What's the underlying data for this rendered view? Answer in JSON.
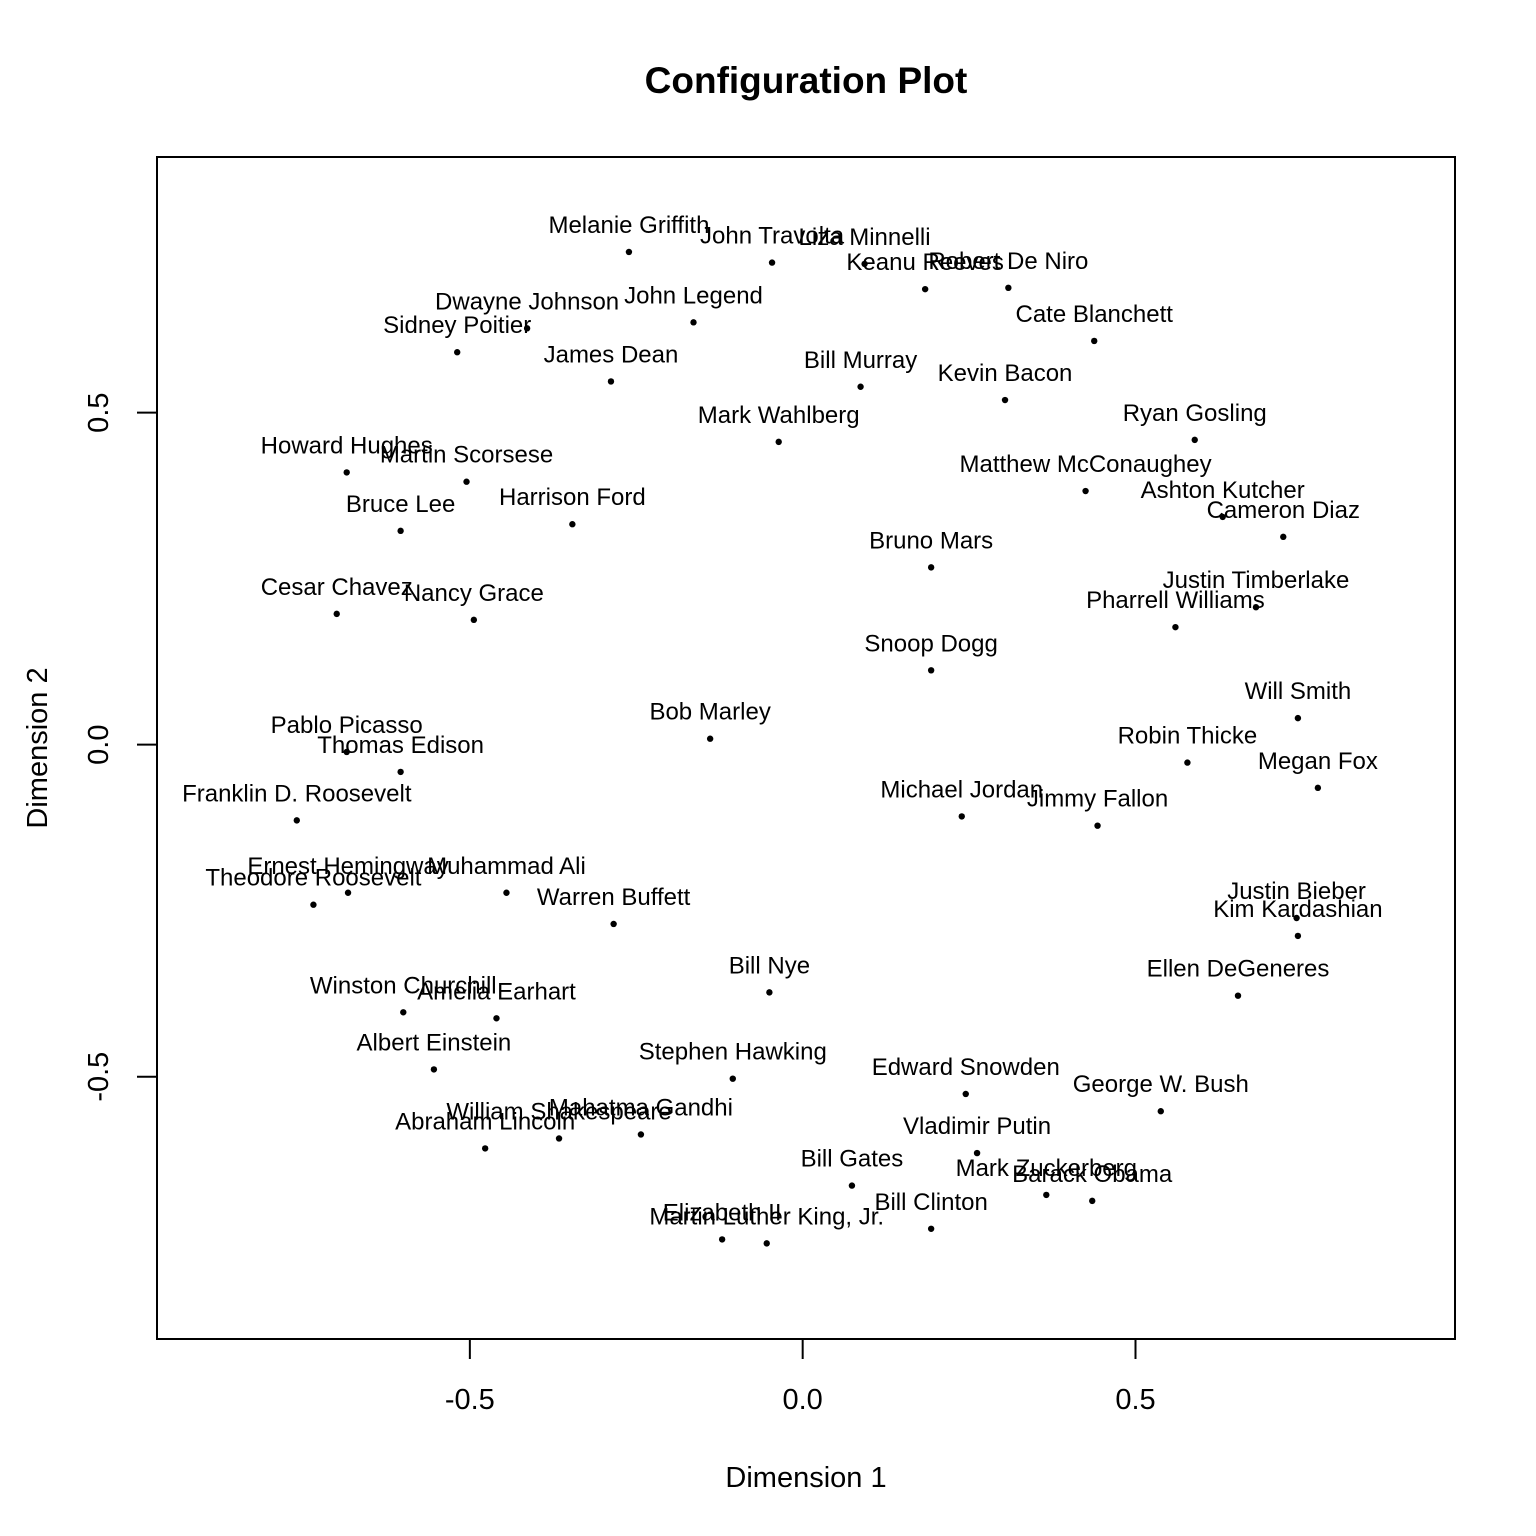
{
  "chart_data": {
    "type": "scatter",
    "title": "Configuration Plot",
    "xlabel": "Dimension 1",
    "ylabel": "Dimension 2",
    "xlim": [
      -0.97,
      0.98
    ],
    "ylim": [
      -0.895,
      0.885
    ],
    "xticks": [
      -0.5,
      0.0,
      0.5
    ],
    "xtick_labels": [
      "-0.5",
      "0.0",
      "0.5"
    ],
    "yticks": [
      -0.5,
      0.0,
      0.5
    ],
    "ytick_labels": [
      "-0.5",
      "0.0",
      "0.5"
    ],
    "grid": false,
    "legend": "none",
    "colors": {
      "points": "#000000",
      "text": "#000000",
      "frame": "#000000"
    },
    "points": [
      {
        "label": "Melanie Griffith",
        "x": -0.261,
        "y": 0.742
      },
      {
        "label": "John Travolta",
        "x": -0.046,
        "y": 0.726
      },
      {
        "label": "Liza Minnelli",
        "x": 0.093,
        "y": 0.724
      },
      {
        "label": "Keanu Reeves",
        "x": 0.184,
        "y": 0.686
      },
      {
        "label": "Robert De Niro",
        "x": 0.309,
        "y": 0.688
      },
      {
        "label": "John Legend",
        "x": -0.164,
        "y": 0.636
      },
      {
        "label": "Dwayne Johnson",
        "x": -0.414,
        "y": 0.627
      },
      {
        "label": "Sidney Poitier",
        "x": -0.519,
        "y": 0.591
      },
      {
        "label": "Cate Blanchett",
        "x": 0.438,
        "y": 0.608
      },
      {
        "label": "James Dean",
        "x": -0.288,
        "y": 0.547
      },
      {
        "label": "Bill Murray",
        "x": 0.087,
        "y": 0.539
      },
      {
        "label": "Kevin Bacon",
        "x": 0.304,
        "y": 0.519
      },
      {
        "label": "Mark Wahlberg",
        "x": -0.036,
        "y": 0.456
      },
      {
        "label": "Ryan Gosling",
        "x": 0.589,
        "y": 0.459
      },
      {
        "label": "Howard Hughes",
        "x": -0.685,
        "y": 0.41
      },
      {
        "label": "Martin Scorsese",
        "x": -0.505,
        "y": 0.396
      },
      {
        "label": "Matthew McConaughey",
        "x": 0.425,
        "y": 0.382
      },
      {
        "label": "Ashton Kutcher",
        "x": 0.631,
        "y": 0.343
      },
      {
        "label": "Cameron Diaz",
        "x": 0.722,
        "y": 0.313
      },
      {
        "label": "Bruce Lee",
        "x": -0.604,
        "y": 0.322
      },
      {
        "label": "Harrison Ford",
        "x": -0.346,
        "y": 0.332
      },
      {
        "label": "Bruno Mars",
        "x": 0.193,
        "y": 0.267
      },
      {
        "label": "Justin Timberlake",
        "x": 0.681,
        "y": 0.207
      },
      {
        "label": "Cesar Chavez",
        "x": -0.7,
        "y": 0.197
      },
      {
        "label": "Nancy Grace",
        "x": -0.494,
        "y": 0.188
      },
      {
        "label": "Pharrell Williams",
        "x": 0.56,
        "y": 0.177
      },
      {
        "label": "Snoop Dogg",
        "x": 0.193,
        "y": 0.112
      },
      {
        "label": "Will Smith",
        "x": 0.744,
        "y": 0.04
      },
      {
        "label": "Bob Marley",
        "x": -0.139,
        "y": 0.009
      },
      {
        "label": "Pablo Picasso",
        "x": -0.685,
        "y": -0.011
      },
      {
        "label": "Thomas Edison",
        "x": -0.604,
        "y": -0.041
      },
      {
        "label": "Robin Thicke",
        "x": 0.578,
        "y": -0.027
      },
      {
        "label": "Megan Fox",
        "x": 0.774,
        "y": -0.065
      },
      {
        "label": "Franklin D. Roosevelt",
        "x": -0.76,
        "y": -0.114
      },
      {
        "label": "Michael Jordan",
        "x": 0.239,
        "y": -0.108
      },
      {
        "label": "Jimmy Fallon",
        "x": 0.443,
        "y": -0.122
      },
      {
        "label": "Ernest Hemingway",
        "x": -0.683,
        "y": -0.223
      },
      {
        "label": "Theodore Roosevelt",
        "x": -0.735,
        "y": -0.241
      },
      {
        "label": "Muhammad Ali",
        "x": -0.445,
        "y": -0.223
      },
      {
        "label": "Warren Buffett",
        "x": -0.284,
        "y": -0.27
      },
      {
        "label": "Justin Bieber",
        "x": 0.742,
        "y": -0.261
      },
      {
        "label": "Kim Kardashian",
        "x": 0.744,
        "y": -0.288
      },
      {
        "label": "Bill Nye",
        "x": -0.05,
        "y": -0.373
      },
      {
        "label": "Ellen DeGeneres",
        "x": 0.654,
        "y": -0.378
      },
      {
        "label": "Winston Churchill",
        "x": -0.6,
        "y": -0.403
      },
      {
        "label": "Amelia Earhart",
        "x": -0.46,
        "y": -0.412
      },
      {
        "label": "Albert Einstein",
        "x": -0.554,
        "y": -0.489
      },
      {
        "label": "Stephen Hawking",
        "x": -0.105,
        "y": -0.503
      },
      {
        "label": "Edward Snowden",
        "x": 0.245,
        "y": -0.526
      },
      {
        "label": "George W. Bush",
        "x": 0.538,
        "y": -0.552
      },
      {
        "label": "William Shakespeare",
        "x": -0.366,
        "y": -0.593
      },
      {
        "label": "Mahatma Gandhi",
        "x": -0.243,
        "y": -0.587
      },
      {
        "label": "Abraham Lincoln",
        "x": -0.477,
        "y": -0.608
      },
      {
        "label": "Vladimir Putin",
        "x": 0.262,
        "y": -0.615
      },
      {
        "label": "Bill Gates",
        "x": 0.074,
        "y": -0.664
      },
      {
        "label": "Mark Zuckerberg",
        "x": 0.366,
        "y": -0.678
      },
      {
        "label": "Barack Obama",
        "x": 0.435,
        "y": -0.687
      },
      {
        "label": "Bill Clinton",
        "x": 0.193,
        "y": -0.729
      },
      {
        "label": "Elizabeth II",
        "x": -0.121,
        "y": -0.745
      },
      {
        "label": "Martin Luther King, Jr.",
        "x": -0.054,
        "y": -0.751
      }
    ]
  }
}
